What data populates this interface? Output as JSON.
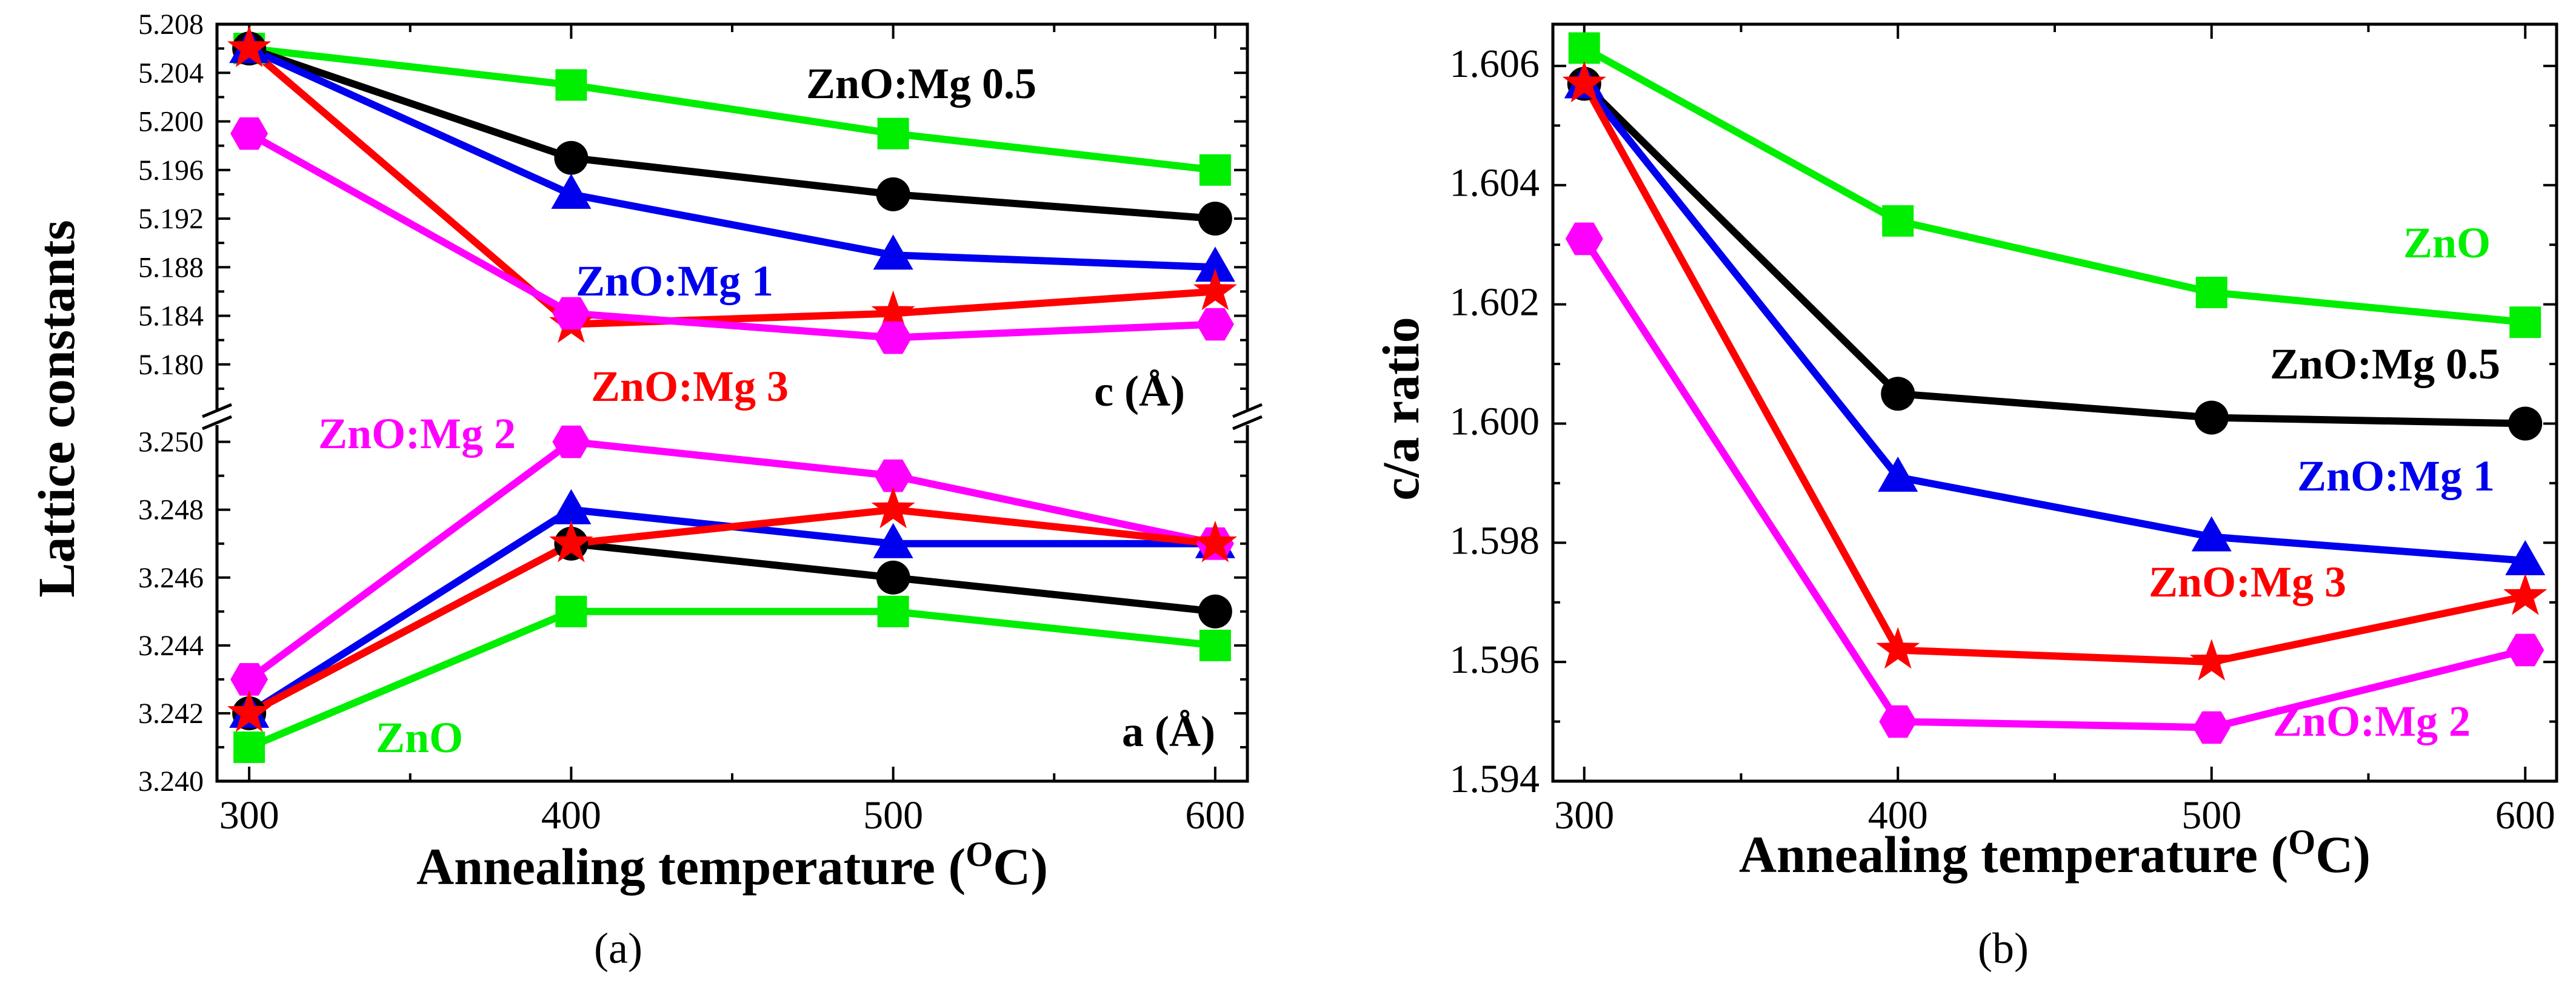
{
  "chart_data": [
    {
      "panel": "a",
      "caption": "(a)",
      "type": "line",
      "xlabel": "Annealing temperature (",
      "xlabel_sup": "O",
      "xlabel_tail": "C)",
      "ylabel": "Lattice constants",
      "x": [
        300,
        400,
        500,
        600
      ],
      "x_ticks": [
        "300",
        "400",
        "500",
        "600"
      ],
      "xlim": [
        290,
        610
      ],
      "sub_axes": [
        {
          "name": "c",
          "label": "c (Å)",
          "ylim": [
            5.176,
            5.208
          ],
          "y_ticks": [
            "5.180",
            "5.184",
            "5.188",
            "5.192",
            "5.196",
            "5.200",
            "5.204",
            "5.208"
          ],
          "series": [
            {
              "name": "ZnO",
              "color": "#00ee00",
              "marker": "square",
              "values": [
                5.206,
                5.203,
                5.199,
                5.196
              ]
            },
            {
              "name": "ZnO:Mg 0.5",
              "color": "#000000",
              "marker": "circle",
              "values": [
                5.206,
                5.197,
                5.194,
                5.192
              ]
            },
            {
              "name": "ZnO:Mg 1",
              "color": "#0000ee",
              "marker": "triangle",
              "values": [
                5.206,
                5.194,
                5.189,
                5.188
              ]
            },
            {
              "name": "ZnO:Mg 3",
              "color": "#ff0000",
              "marker": "star",
              "values": [
                5.206,
                5.1833,
                5.1842,
                5.186
              ]
            },
            {
              "name": "ZnO:Mg 2",
              "color": "#ff00ff",
              "marker": "hexagon",
              "values": [
                5.199,
                5.1842,
                5.1822,
                5.1833
              ]
            }
          ]
        },
        {
          "name": "a",
          "label": "a (Å)",
          "ylim": [
            3.24,
            3.2506
          ],
          "y_ticks": [
            "3.240",
            "3.242",
            "3.244",
            "3.246",
            "3.248",
            "3.250"
          ],
          "series": [
            {
              "name": "ZnO",
              "color": "#00ee00",
              "marker": "square",
              "values": [
                3.241,
                3.245,
                3.245,
                3.244
              ]
            },
            {
              "name": "ZnO:Mg 0.5",
              "color": "#000000",
              "marker": "circle",
              "values": [
                3.242,
                3.247,
                3.246,
                3.245
              ]
            },
            {
              "name": "ZnO:Mg 1",
              "color": "#0000ee",
              "marker": "triangle",
              "values": [
                3.242,
                3.248,
                3.247,
                3.247
              ]
            },
            {
              "name": "ZnO:Mg 2",
              "color": "#ff00ff",
              "marker": "hexagon",
              "values": [
                3.243,
                3.25,
                3.249,
                3.247
              ]
            },
            {
              "name": "ZnO:Mg 3",
              "color": "#ff0000",
              "marker": "star",
              "values": [
                3.242,
                3.247,
                3.248,
                3.247
              ]
            }
          ]
        }
      ],
      "annotations": [
        "ZnO:Mg 0.5",
        "ZnO:Mg 1",
        "ZnO:Mg 3",
        "ZnO:Mg 2",
        "ZnO"
      ]
    },
    {
      "panel": "b",
      "caption": "(b)",
      "type": "line",
      "xlabel": "Annealing temperature (",
      "xlabel_sup": "O",
      "xlabel_tail": "C)",
      "ylabel": "c/a  ratio",
      "x": [
        300,
        400,
        500,
        600
      ],
      "x_ticks": [
        "300",
        "400",
        "500",
        "600"
      ],
      "xlim": [
        290,
        610
      ],
      "ylim": [
        1.594,
        1.6067
      ],
      "y_ticks": [
        "1.594",
        "1.596",
        "1.598",
        "1.600",
        "1.602",
        "1.604",
        "1.606"
      ],
      "series": [
        {
          "name": "ZnO",
          "color": "#00ee00",
          "marker": "square",
          "values": [
            1.6063,
            1.6034,
            1.6022,
            1.6017
          ]
        },
        {
          "name": "ZnO:Mg 0.5",
          "color": "#000000",
          "marker": "circle",
          "values": [
            1.6057,
            1.6005,
            1.6001,
            1.6
          ]
        },
        {
          "name": "ZnO:Mg 1",
          "color": "#0000ee",
          "marker": "triangle",
          "values": [
            1.6057,
            1.5991,
            1.5981,
            1.5977
          ]
        },
        {
          "name": "ZnO:Mg 3",
          "color": "#ff0000",
          "marker": "star",
          "values": [
            1.6057,
            1.5962,
            1.596,
            1.5971
          ]
        },
        {
          "name": "ZnO:Mg 2",
          "color": "#ff00ff",
          "marker": "hexagon",
          "values": [
            1.6031,
            1.595,
            1.5949,
            1.5962
          ]
        }
      ],
      "annotations": [
        "ZnO",
        "ZnO:Mg 0.5",
        "ZnO:Mg 1",
        "ZnO:Mg 3",
        "ZnO:Mg 2"
      ]
    }
  ]
}
